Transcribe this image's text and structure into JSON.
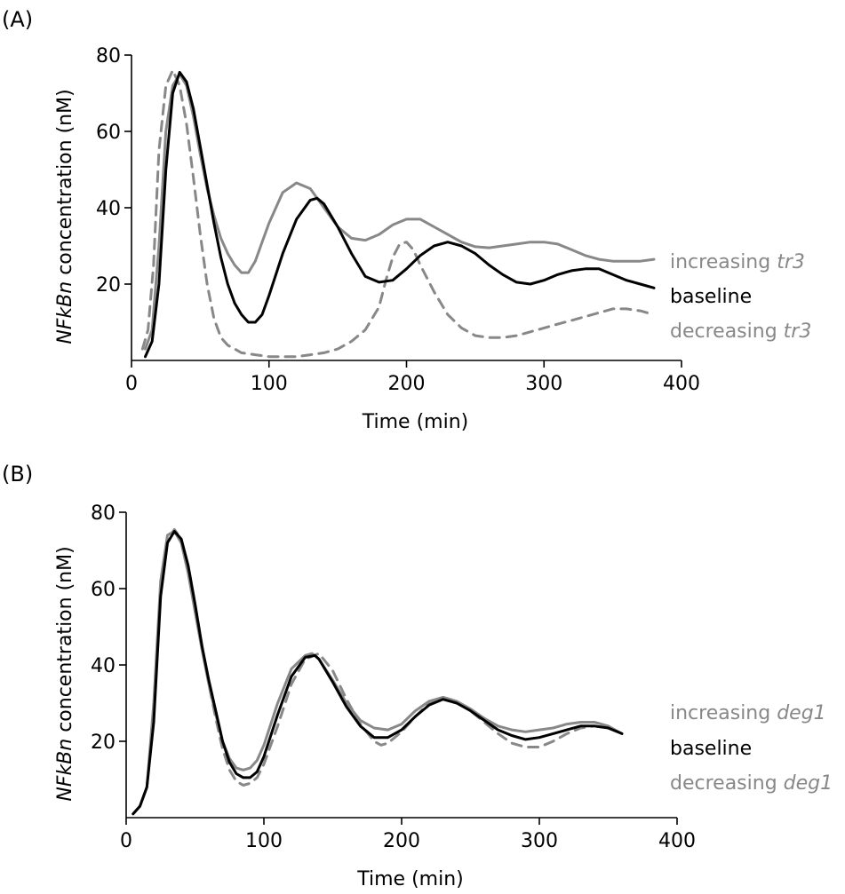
{
  "chart_data": [
    {
      "panel_label": "(A)",
      "type": "line",
      "xlabel": "Time (min)",
      "ylabel_italic": "NFkBn",
      "ylabel_rest": " concentration (nM)",
      "xlim": [
        0,
        400
      ],
      "ylim": [
        0,
        80
      ],
      "xticks": [
        0,
        100,
        200,
        300,
        400
      ],
      "yticks": [
        20,
        40,
        60,
        80
      ],
      "series": [
        {
          "legend_prefix": "increasing ",
          "legend_italic": "tr3",
          "color": "#888888",
          "dash": "solid",
          "x": [
            10,
            15,
            20,
            25,
            30,
            35,
            40,
            45,
            50,
            55,
            60,
            65,
            70,
            75,
            80,
            85,
            90,
            95,
            100,
            110,
            120,
            130,
            140,
            150,
            160,
            170,
            180,
            190,
            200,
            210,
            220,
            230,
            240,
            250,
            260,
            270,
            280,
            290,
            300,
            310,
            320,
            330,
            340,
            350,
            360,
            370,
            380
          ],
          "y": [
            3,
            8,
            30,
            60,
            72,
            75,
            72,
            64,
            54,
            45,
            38,
            32,
            28,
            25,
            23,
            23,
            26,
            31,
            36,
            44,
            46.5,
            45,
            40,
            35,
            32,
            31.5,
            33,
            35.5,
            37,
            37,
            35,
            33,
            31,
            29.8,
            29.5,
            30,
            30.5,
            31,
            31,
            30.5,
            29,
            27.5,
            26.5,
            26,
            26,
            26,
            26.5
          ]
        },
        {
          "legend_prefix": "baseline",
          "legend_italic": "",
          "color": "#000000",
          "dash": "solid",
          "x": [
            10,
            15,
            20,
            25,
            30,
            35,
            40,
            45,
            50,
            55,
            60,
            65,
            70,
            75,
            80,
            85,
            90,
            95,
            100,
            110,
            120,
            130,
            135,
            140,
            150,
            160,
            170,
            180,
            190,
            200,
            210,
            220,
            230,
            240,
            250,
            260,
            270,
            280,
            290,
            300,
            310,
            320,
            330,
            340,
            350,
            360,
            370,
            380
          ],
          "y": [
            1,
            5,
            20,
            50,
            70,
            75.5,
            73,
            66,
            56,
            46,
            36,
            27,
            20,
            15,
            12,
            10,
            10,
            12,
            17,
            28,
            37,
            42,
            42.5,
            41,
            35,
            28,
            22,
            20.5,
            21,
            24,
            27.5,
            30,
            31,
            30,
            28,
            25,
            22.5,
            20.5,
            20,
            21,
            22.5,
            23.5,
            24,
            24,
            22.5,
            21,
            20,
            19
          ]
        },
        {
          "legend_prefix": "decreasing ",
          "legend_italic": "tr3",
          "color": "#888888",
          "dash": "dashed",
          "x": [
            8,
            12,
            16,
            20,
            25,
            30,
            35,
            40,
            45,
            50,
            55,
            60,
            65,
            70,
            75,
            80,
            90,
            100,
            110,
            120,
            130,
            140,
            150,
            160,
            170,
            180,
            185,
            190,
            195,
            200,
            205,
            210,
            220,
            230,
            240,
            250,
            260,
            270,
            280,
            290,
            300,
            310,
            320,
            330,
            340,
            350,
            360,
            370,
            380
          ],
          "y": [
            3,
            8,
            25,
            55,
            72,
            76,
            72,
            62,
            48,
            33,
            20,
            11,
            6,
            4,
            3,
            2,
            1.5,
            1,
            1,
            1,
            1.5,
            2,
            3,
            5,
            8,
            14,
            21,
            27,
            30.5,
            31,
            29,
            25,
            18,
            12,
            8.5,
            6.5,
            6,
            6,
            6.5,
            7.5,
            8.5,
            9.5,
            10.5,
            11.5,
            12.5,
            13.5,
            13.5,
            13,
            12
          ]
        }
      ]
    },
    {
      "panel_label": "(B)",
      "type": "line",
      "xlabel": "Time (min)",
      "ylabel_italic": "NFkBn",
      "ylabel_rest": " concentration (nM)",
      "xlim": [
        0,
        400
      ],
      "ylim": [
        0,
        80
      ],
      "xticks": [
        0,
        100,
        200,
        300,
        400
      ],
      "yticks": [
        20,
        40,
        60,
        80
      ],
      "series": [
        {
          "legend_prefix": "increasing ",
          "legend_italic": "deg1",
          "color": "#888888",
          "dash": "solid",
          "x": [
            5,
            10,
            15,
            20,
            25,
            30,
            35,
            40,
            45,
            50,
            55,
            60,
            65,
            70,
            75,
            80,
            85,
            90,
            95,
            100,
            110,
            120,
            130,
            135,
            140,
            150,
            160,
            170,
            180,
            190,
            200,
            210,
            220,
            230,
            240,
            250,
            260,
            270,
            280,
            290,
            300,
            310,
            320,
            330,
            340,
            350,
            360
          ],
          "y": [
            1,
            3,
            8,
            30,
            62,
            74,
            75,
            72,
            64,
            54,
            44,
            35,
            27,
            20,
            15.5,
            13,
            12.5,
            13,
            15,
            19,
            30,
            39,
            42.5,
            43,
            41.5,
            36,
            30,
            25.5,
            23.5,
            23,
            24.5,
            28,
            30.5,
            31.5,
            30.5,
            28.5,
            26,
            24,
            23,
            22.5,
            23,
            23.5,
            24.5,
            25,
            25,
            24,
            22
          ]
        },
        {
          "legend_prefix": "baseline",
          "legend_italic": "",
          "color": "#000000",
          "dash": "solid",
          "x": [
            5,
            10,
            15,
            20,
            25,
            30,
            35,
            40,
            45,
            50,
            55,
            60,
            65,
            70,
            75,
            80,
            85,
            90,
            95,
            100,
            110,
            120,
            130,
            137,
            140,
            150,
            160,
            170,
            180,
            190,
            200,
            210,
            220,
            230,
            240,
            250,
            260,
            270,
            280,
            290,
            300,
            310,
            320,
            330,
            340,
            350,
            360
          ],
          "y": [
            1,
            3,
            8,
            25,
            58,
            72,
            75,
            73,
            66,
            56,
            45,
            36,
            28,
            20,
            14.5,
            11.5,
            10.5,
            10.5,
            12,
            16,
            27,
            37,
            42,
            42.5,
            41.5,
            35.5,
            29,
            24,
            21,
            21,
            23,
            26.5,
            29.5,
            31,
            30,
            28,
            25.5,
            23,
            21.5,
            20.5,
            21,
            22,
            23,
            24,
            24,
            23.5,
            22
          ]
        },
        {
          "legend_prefix": "decreasing ",
          "legend_italic": "deg1",
          "color": "#888888",
          "dash": "dashed",
          "x": [
            5,
            10,
            15,
            20,
            25,
            30,
            35,
            40,
            45,
            50,
            55,
            60,
            65,
            70,
            75,
            80,
            85,
            90,
            95,
            100,
            110,
            120,
            130,
            140,
            150,
            160,
            170,
            180,
            185,
            190,
            200,
            210,
            220,
            230,
            240,
            250,
            260,
            270,
            280,
            290,
            300,
            310,
            320,
            330,
            340,
            350,
            360
          ],
          "y": [
            1,
            3,
            8,
            28,
            60,
            73,
            75.5,
            73,
            66,
            56,
            45,
            35,
            26,
            18,
            12.5,
            9.5,
            8.5,
            9,
            10.5,
            14,
            24,
            35,
            41.5,
            43,
            38.5,
            31,
            24.5,
            20,
            19,
            19.5,
            22.5,
            26.5,
            30,
            31.5,
            30.5,
            28,
            25,
            22,
            19.5,
            18.5,
            18.5,
            20,
            22,
            23.5,
            24,
            23.5,
            22
          ]
        }
      ]
    }
  ]
}
